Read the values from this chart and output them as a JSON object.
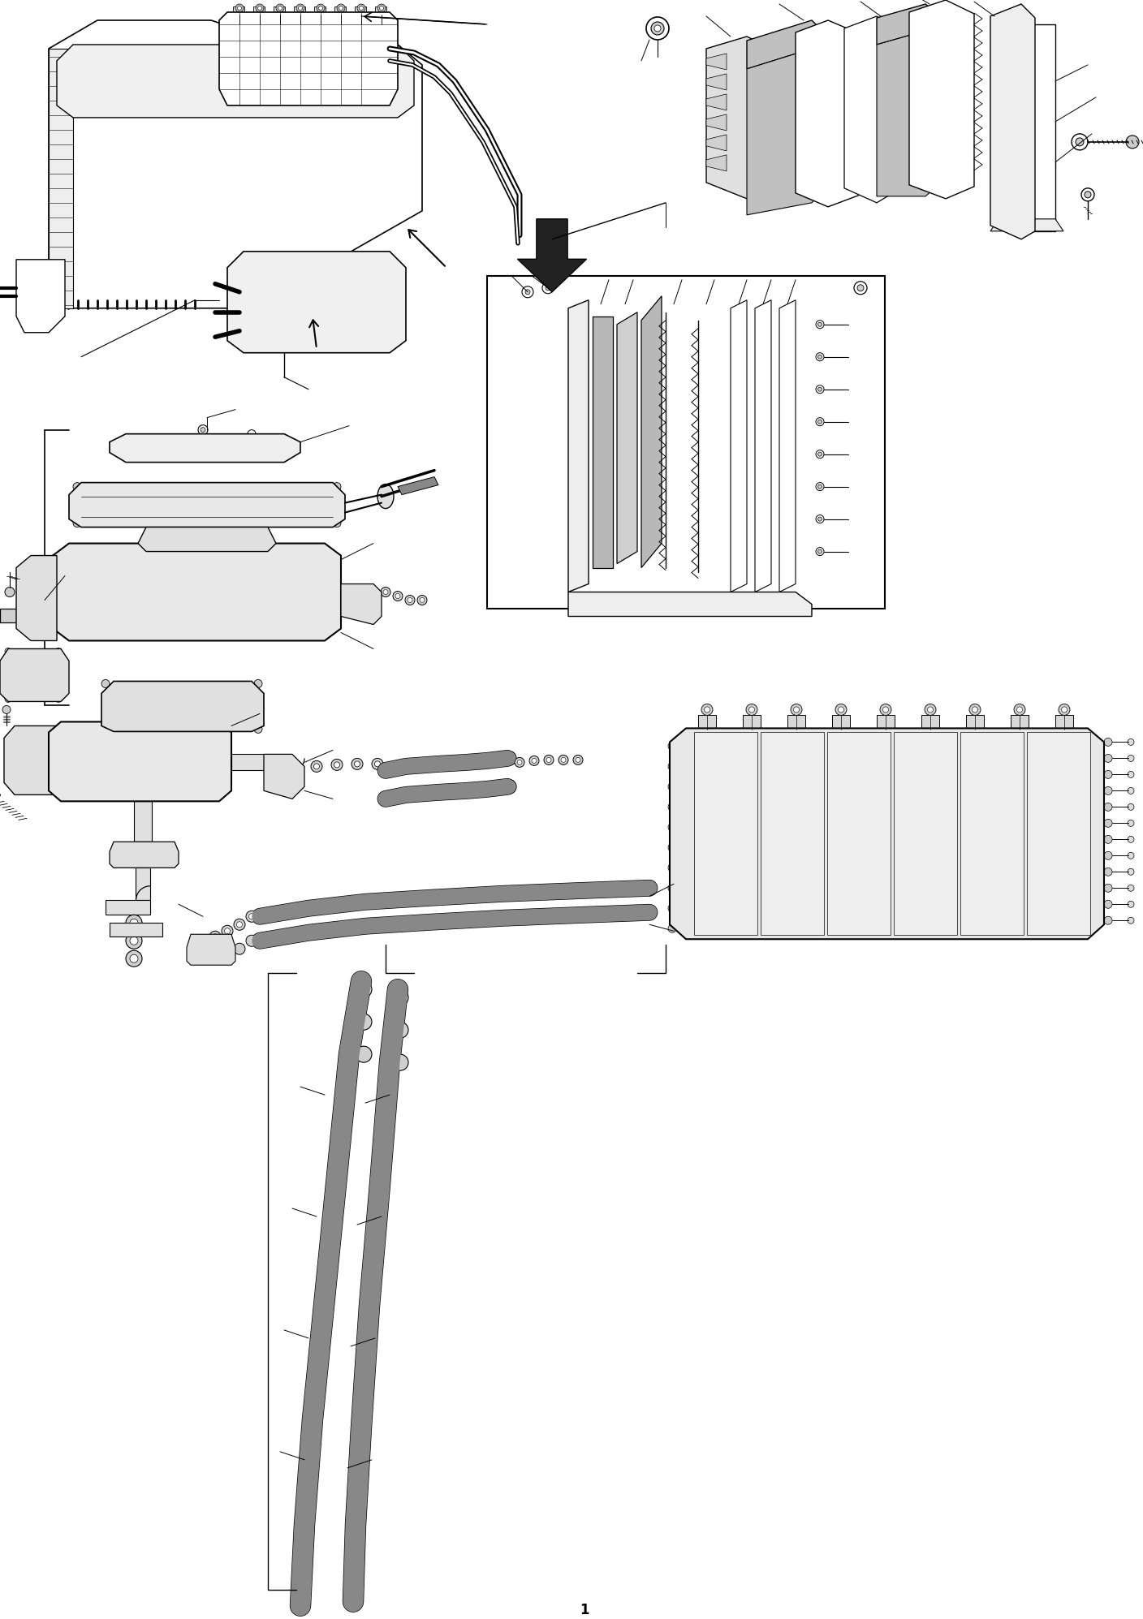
{
  "background_color": "#ffffff",
  "figure_width": 14.08,
  "figure_height": 19.95,
  "line_color": "#000000",
  "page_number": "1",
  "gray_dark": "#505050",
  "gray_med": "#888888",
  "gray_light": "#cccccc",
  "gray_fill": "#e8e8e8",
  "gray_hatch": "#d0d0d0"
}
